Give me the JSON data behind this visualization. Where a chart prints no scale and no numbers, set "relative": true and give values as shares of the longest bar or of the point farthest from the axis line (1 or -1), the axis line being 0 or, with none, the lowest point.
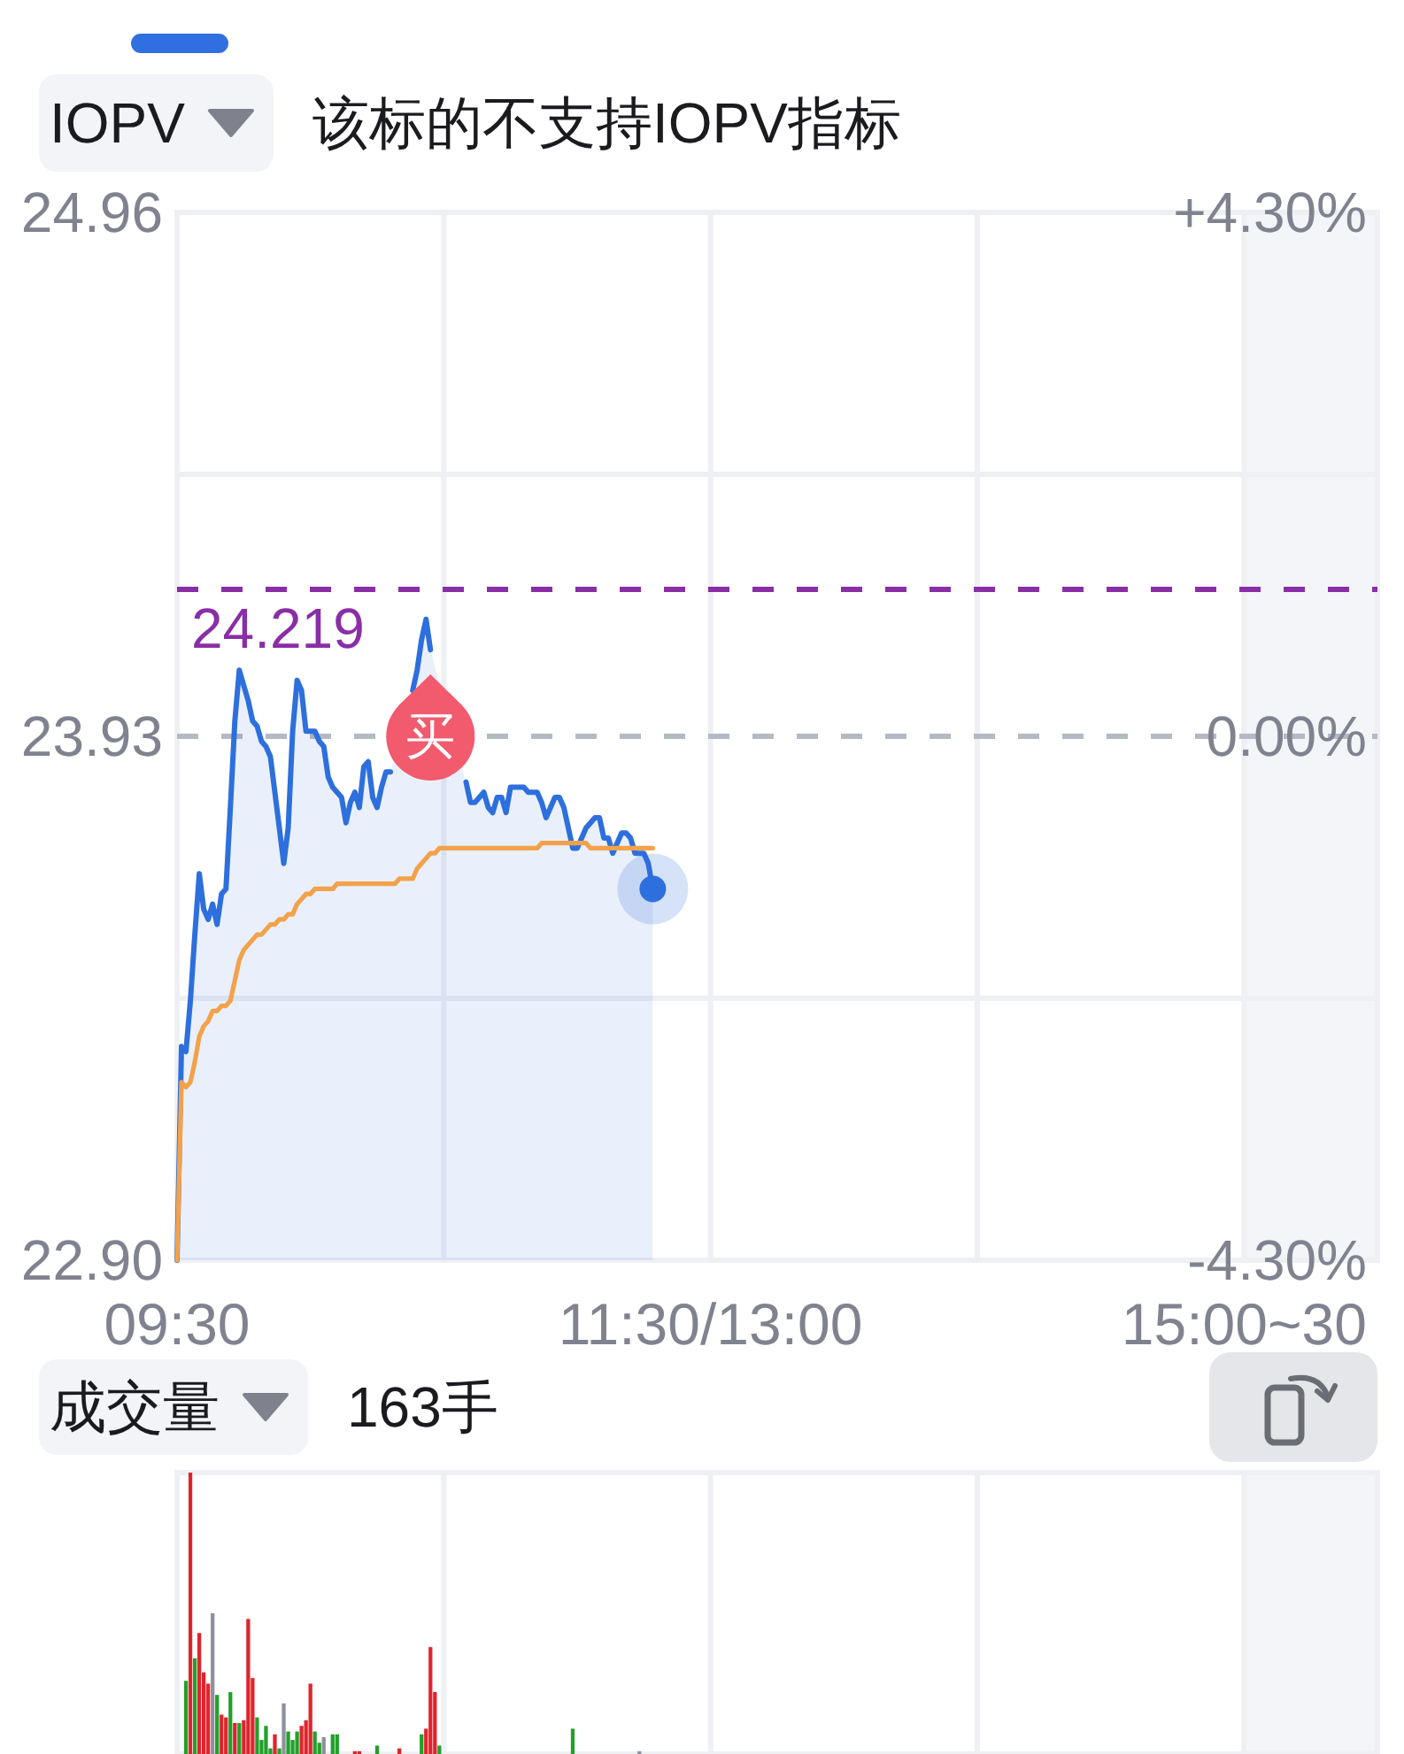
{
  "chart_data": [
    {
      "type": "area",
      "title": "IOPV",
      "subtitle": "该标的不支持IOPV指标",
      "categories": [
        "09:30",
        null,
        null,
        null,
        null,
        null,
        null,
        null,
        null,
        null,
        null,
        null,
        null,
        null,
        null,
        null,
        null,
        null,
        null,
        null,
        null,
        null,
        null,
        null,
        null,
        null,
        null,
        null,
        null,
        null,
        null,
        null,
        null,
        null,
        null,
        null,
        null,
        null,
        null,
        null,
        null,
        null,
        null,
        null,
        null,
        null,
        null,
        null,
        null,
        null,
        null,
        null,
        null,
        null,
        null,
        null,
        null,
        null,
        null,
        null,
        null,
        null,
        null,
        null,
        null,
        null,
        null,
        null,
        null,
        null,
        null,
        null,
        null,
        null,
        null,
        null,
        null,
        null,
        null,
        null,
        null,
        null,
        null,
        null,
        null,
        null,
        null,
        null,
        null,
        null,
        null,
        null,
        null,
        null,
        null,
        null,
        null,
        null,
        null,
        null,
        null,
        null,
        null,
        null,
        null,
        null,
        null,
        null,
        null,
        null,
        null,
        null,
        null,
        null,
        null,
        null,
        null,
        null,
        null,
        null,
        "11:30/13:00",
        null,
        null,
        null,
        null,
        null,
        null,
        null,
        null,
        null,
        null,
        null,
        null,
        null,
        null,
        null,
        null,
        null,
        null,
        null,
        null,
        null,
        null,
        null,
        null,
        null,
        null,
        null,
        null,
        null,
        null,
        null,
        null,
        null,
        null,
        null,
        null,
        null,
        null,
        null,
        null,
        null,
        null,
        null,
        null,
        null,
        null,
        null,
        null,
        null,
        null,
        null,
        null,
        null,
        null,
        null,
        null,
        null,
        null,
        null,
        null,
        null,
        null,
        null,
        null,
        null,
        null,
        null,
        null,
        null,
        null,
        null,
        null,
        null,
        null,
        null,
        null,
        null,
        null,
        null,
        null,
        null,
        null,
        null,
        null,
        null,
        null,
        null,
        null,
        null,
        null,
        null,
        null,
        null,
        null,
        null,
        null,
        null,
        null,
        null,
        null,
        null,
        null,
        null,
        null,
        null,
        null,
        null,
        null,
        null,
        null,
        null,
        null,
        null,
        null,
        null,
        null,
        null,
        null,
        null,
        "15:00~30",
        null,
        null,
        null,
        null,
        null,
        null,
        null,
        null,
        null,
        null,
        null,
        null,
        null,
        null,
        null,
        null,
        null,
        null,
        null,
        null,
        null,
        null,
        null,
        null,
        null,
        null,
        null,
        null,
        null,
        null
      ],
      "series": [
        {
          "color": "#2d6fdc",
          "values": [
            22.9,
            23.32,
            23.31,
            23.41,
            23.54,
            23.66,
            23.59,
            23.57,
            23.6,
            23.56,
            23.62,
            23.63,
            23.79,
            23.96,
            24.06,
            24.03,
            24.0,
            23.96,
            23.95,
            23.92,
            23.91,
            23.89,
            23.82,
            23.75,
            23.68,
            23.75,
            23.94,
            24.04,
            24.02,
            23.94,
            23.94,
            23.94,
            23.92,
            23.91,
            23.85,
            23.83,
            23.82,
            23.81,
            23.76,
            23.8,
            23.82,
            23.79,
            23.87,
            23.88,
            23.81,
            23.79,
            23.83,
            23.86,
            23.86,
            null,
            null,
            null,
            null,
            24.02,
            24.06,
            24.12,
            24.16,
            24.1,
            null,
            null,
            null,
            null,
            null,
            null,
            null,
            23.84,
            23.8,
            23.8,
            23.81,
            23.82,
            23.79,
            23.78,
            23.81,
            23.81,
            23.78,
            23.83,
            23.83,
            23.83,
            23.83,
            23.82,
            23.82,
            23.82,
            23.8,
            23.77,
            23.79,
            23.81,
            23.81,
            23.79,
            23.75,
            23.71,
            23.71,
            23.73,
            23.75,
            23.76,
            23.77,
            23.77,
            23.73,
            23.73,
            23.7,
            23.72,
            23.74,
            23.74,
            23.73,
            23.7,
            23.7,
            23.7,
            23.68,
            23.63,
            null,
            null,
            null,
            null,
            null,
            null,
            null,
            null,
            null,
            null,
            null,
            null,
            null,
            null,
            null,
            null,
            null,
            null,
            null,
            null,
            null,
            null,
            null,
            null,
            null,
            null,
            null,
            null,
            null,
            null,
            null,
            null,
            null,
            null,
            null,
            null,
            null,
            null,
            null,
            null,
            null,
            null,
            null,
            null,
            null,
            null,
            null,
            null,
            null,
            null,
            null,
            null,
            null,
            null,
            null,
            null,
            null,
            null,
            null,
            null,
            null,
            null,
            null,
            null,
            null,
            null,
            null,
            null,
            null,
            null,
            null,
            null,
            null,
            null,
            null,
            null,
            null,
            null,
            null,
            null,
            null,
            null,
            null,
            null,
            null,
            null,
            null,
            null,
            null,
            null,
            null,
            null,
            null,
            null,
            null,
            null,
            null,
            null,
            null,
            null,
            null,
            null,
            null,
            null,
            null,
            null,
            null,
            null,
            null,
            null,
            null,
            null,
            null,
            null,
            null,
            null,
            null,
            null,
            null,
            null,
            null,
            null,
            null,
            null,
            null,
            null,
            null,
            null,
            null,
            null,
            null,
            null,
            null,
            null,
            null,
            null,
            null,
            null,
            null,
            null,
            null,
            null,
            null,
            null,
            null,
            null,
            null,
            null,
            null,
            null,
            null,
            null,
            null,
            null,
            null,
            null,
            null,
            null,
            null,
            null,
            null,
            null,
            null
          ]
        },
        {
          "type": "line",
          "color": "#f3a24b",
          "values": [
            22.9,
            23.25,
            23.24,
            23.25,
            23.29,
            23.34,
            23.36,
            23.37,
            23.39,
            23.39,
            23.4,
            23.4,
            23.41,
            23.45,
            23.49,
            23.51,
            23.52,
            23.53,
            23.54,
            23.54,
            23.55,
            23.56,
            23.56,
            23.57,
            23.57,
            23.58,
            23.58,
            23.6,
            23.61,
            23.62,
            23.62,
            23.63,
            23.63,
            23.63,
            23.63,
            23.63,
            23.64,
            23.64,
            23.64,
            23.64,
            23.64,
            23.64,
            23.64,
            23.64,
            23.64,
            23.64,
            23.64,
            23.64,
            23.64,
            23.64,
            23.65,
            23.65,
            23.65,
            23.65,
            23.67,
            23.68,
            23.69,
            23.7,
            23.7,
            23.71,
            23.71,
            23.71,
            23.71,
            23.71,
            23.71,
            23.71,
            23.71,
            23.71,
            23.71,
            23.71,
            23.71,
            23.71,
            23.71,
            23.71,
            23.71,
            23.71,
            23.71,
            23.71,
            23.71,
            23.71,
            23.71,
            23.71,
            23.72,
            23.72,
            23.72,
            23.72,
            23.72,
            23.72,
            23.72,
            23.72,
            23.72,
            23.72,
            23.72,
            23.71,
            23.71,
            23.71,
            23.71,
            23.71,
            23.71,
            23.71,
            23.71,
            23.71,
            23.71,
            23.71,
            23.71,
            23.71,
            23.71,
            23.71,
            null,
            null,
            null,
            null,
            null,
            null,
            null,
            null,
            null,
            null,
            null,
            null,
            null,
            null,
            null,
            null,
            null,
            null,
            null,
            null,
            null,
            null,
            null,
            null,
            null,
            null,
            null,
            null,
            null,
            null,
            null,
            null,
            null,
            null,
            null,
            null,
            null,
            null,
            null,
            null,
            null,
            null,
            null,
            null,
            null,
            null,
            null,
            null,
            null,
            null,
            null,
            null,
            null,
            null,
            null,
            null,
            null,
            null,
            null,
            null,
            null,
            null,
            null,
            null,
            null,
            null,
            null,
            null,
            null,
            null,
            null,
            null,
            null,
            null,
            null,
            null,
            null,
            null,
            null,
            null,
            null,
            null,
            null,
            null,
            null,
            null,
            null,
            null,
            null,
            null,
            null,
            null,
            null,
            null,
            null,
            null,
            null,
            null,
            null,
            null,
            null,
            null,
            null,
            null,
            null,
            null,
            null,
            null,
            null,
            null,
            null,
            null,
            null,
            null,
            null,
            null,
            null,
            null,
            null,
            null,
            null,
            null,
            null,
            null,
            null,
            null,
            null,
            null,
            null,
            null,
            null,
            null,
            null,
            null,
            null,
            null,
            null,
            null,
            null,
            null,
            null,
            null,
            null,
            null,
            null,
            null,
            null,
            null,
            null,
            null,
            null,
            null,
            null,
            null,
            null,
            null,
            null,
            null,
            null,
            null,
            null,
            null,
            null
          ]
        },
        {
          "type": "scatter",
          "color": "#2d6fdc",
          "marker": "circle",
          "values": [
            null,
            null,
            null,
            null,
            null,
            null,
            null,
            null,
            null,
            null,
            null,
            null,
            null,
            null,
            null,
            null,
            null,
            null,
            null,
            null,
            null,
            null,
            null,
            null,
            null,
            null,
            null,
            null,
            null,
            null,
            null,
            null,
            null,
            null,
            null,
            null,
            null,
            null,
            null,
            null,
            null,
            null,
            null,
            null,
            null,
            null,
            null,
            null,
            null,
            null,
            null,
            null,
            null,
            null,
            null,
            null,
            null,
            null,
            null,
            null,
            null,
            null,
            null,
            null,
            null,
            null,
            null,
            null,
            null,
            null,
            null,
            null,
            null,
            null,
            null,
            null,
            null,
            null,
            null,
            null,
            null,
            null,
            null,
            null,
            null,
            null,
            null,
            null,
            null,
            null,
            null,
            null,
            null,
            null,
            null,
            null,
            null,
            null,
            null,
            null,
            null,
            null,
            null,
            null,
            null,
            null,
            null,
            23.63,
            null,
            null,
            null,
            null,
            null,
            null,
            null,
            null,
            null,
            null,
            null,
            null,
            null,
            null,
            null,
            null,
            null,
            null,
            null,
            null,
            null,
            null,
            null,
            null,
            null,
            null,
            null,
            null,
            null,
            null,
            null,
            null,
            null,
            null,
            null,
            null,
            null,
            null,
            null,
            null,
            null,
            null,
            null,
            null,
            null,
            null,
            null,
            null,
            null,
            null,
            null,
            null,
            null,
            null,
            null,
            null,
            null,
            null,
            null,
            null,
            null,
            null,
            null,
            null,
            null,
            null,
            null,
            null,
            null,
            null,
            null,
            null,
            null,
            null,
            null,
            null,
            null,
            null,
            null,
            null,
            null,
            null,
            null,
            null,
            null,
            null,
            null,
            null,
            null,
            null,
            null,
            null,
            null,
            null,
            null,
            null,
            null,
            null,
            null,
            null,
            null,
            null,
            null,
            null,
            null,
            null,
            null,
            null,
            null,
            null,
            null,
            null,
            null,
            null,
            null,
            null,
            null,
            null,
            null,
            null,
            null,
            null,
            null,
            null,
            null,
            null,
            null,
            null,
            null,
            null,
            null,
            null,
            null,
            null,
            null,
            null,
            null,
            null,
            null,
            null,
            null,
            null,
            null,
            null,
            null,
            null,
            null,
            null,
            null,
            null,
            null,
            null,
            null,
            null,
            null,
            null,
            null,
            null,
            null,
            null,
            null,
            null,
            null
          ]
        },
        {
          "type": "scatter",
          "name": "买",
          "color": "#f25a6e",
          "values": [
            null,
            null,
            null,
            null,
            null,
            null,
            null,
            null,
            null,
            null,
            null,
            null,
            null,
            null,
            null,
            null,
            null,
            null,
            null,
            null,
            null,
            null,
            null,
            null,
            null,
            null,
            null,
            null,
            null,
            null,
            null,
            null,
            null,
            null,
            null,
            null,
            null,
            null,
            null,
            null,
            null,
            null,
            null,
            null,
            null,
            null,
            null,
            null,
            null,
            null,
            null,
            null,
            null,
            null,
            null,
            null,
            null,
            23.93,
            null,
            null,
            null,
            null,
            null,
            null,
            null,
            null,
            null,
            null,
            null,
            null,
            null,
            null,
            null,
            null,
            null,
            null,
            null,
            null,
            null,
            null,
            null,
            null,
            null,
            null,
            null,
            null,
            null,
            null,
            null,
            null,
            null,
            null,
            null,
            null,
            null,
            null,
            null,
            null,
            null,
            null,
            null,
            null,
            null,
            null,
            null,
            null,
            null,
            null,
            null,
            null,
            null,
            null,
            null,
            null,
            null,
            null,
            null,
            null,
            null,
            null,
            null,
            null,
            null,
            null,
            null,
            null,
            null,
            null,
            null,
            null,
            null,
            null,
            null,
            null,
            null,
            null,
            null,
            null,
            null,
            null,
            null,
            null,
            null,
            null,
            null,
            null,
            null,
            null,
            null,
            null,
            null,
            null,
            null,
            null,
            null,
            null,
            null,
            null,
            null,
            null,
            null,
            null,
            null,
            null,
            null,
            null,
            null,
            null,
            null,
            null,
            null,
            null,
            null,
            null,
            null,
            null,
            null,
            null,
            null,
            null,
            null,
            null,
            null,
            null,
            null,
            null,
            null,
            null,
            null,
            null,
            null,
            null,
            null,
            null,
            null,
            null,
            null,
            null,
            null,
            null,
            null,
            null,
            null,
            null,
            null,
            null,
            null,
            null,
            null,
            null,
            null,
            null,
            null,
            null,
            null,
            null,
            null,
            null,
            null,
            null,
            null,
            null,
            null,
            null,
            null,
            null,
            null,
            null,
            null,
            null,
            null,
            null,
            null,
            null,
            null,
            null,
            null,
            null,
            null,
            null,
            null,
            null,
            null,
            null,
            null,
            null,
            null,
            null,
            null,
            null,
            null,
            null,
            null,
            null,
            null,
            null,
            null,
            null,
            null,
            null,
            null,
            null,
            null,
            null,
            null,
            null,
            null,
            null,
            null,
            null,
            null
          ]
        }
      ],
      "ylim": [
        22.9,
        24.96
      ],
      "yticks": [
        24.96,
        {
          "value": 24.445,
          "label": null
        },
        23.93,
        {
          "value": 23.415,
          "label": null
        },
        {
          "value": 22.9,
          "label": "22.90"
        }
      ],
      "y2lim": [
        -4.3,
        4.3
      ],
      "y2ticks": [
        {
          "value": 4.3,
          "label": "+4.30%"
        },
        {
          "value": 0,
          "label": "0.00%"
        },
        {
          "value": -4.3,
          "label": "-4.30%"
        }
      ],
      "ref_lines": [
        {
          "axis": "y",
          "value": 24.219,
          "label": "24.219",
          "color": "#8a2ea6",
          "line_style": "dashed"
        },
        {
          "axis": "y",
          "value": 23.93,
          "color": "#b5b9c5",
          "line_style": "dashed"
        }
      ],
      "grid": true
    },
    {
      "type": "bar",
      "title": "成交量",
      "subtitle": "163手",
      "relative": true,
      "categories": [
        null,
        null,
        null,
        null,
        null,
        null,
        null,
        null,
        null,
        null,
        null,
        null,
        null,
        null,
        null,
        null,
        null,
        null,
        null,
        null,
        null,
        null,
        null,
        null,
        null,
        null,
        null,
        null,
        null,
        null,
        null,
        null,
        null,
        null,
        null,
        null,
        null,
        null,
        null,
        null,
        null,
        null,
        null,
        null,
        null,
        null,
        null,
        null,
        null,
        null,
        null,
        null,
        null,
        null,
        null,
        null,
        null,
        null,
        null,
        null,
        null,
        null,
        null,
        null,
        null,
        null,
        null,
        null,
        null,
        null,
        null,
        null,
        null,
        null,
        null,
        null,
        null,
        null,
        null,
        null,
        null,
        null,
        null,
        null,
        null,
        null,
        null,
        null,
        null,
        null,
        null,
        null,
        null,
        null,
        null,
        null,
        null,
        null,
        null,
        null,
        null,
        null,
        null,
        null,
        null,
        null,
        null,
        null,
        null,
        null,
        null,
        null,
        null,
        null,
        null,
        null,
        null,
        null,
        null,
        null,
        null,
        null,
        null,
        null,
        null,
        null,
        null,
        null,
        null,
        null,
        null,
        null,
        null,
        null,
        null,
        null,
        null,
        null,
        null,
        null,
        null,
        null,
        null,
        null,
        null,
        null,
        null,
        null,
        null,
        null,
        null,
        null,
        null,
        null,
        null,
        null,
        null,
        null,
        null,
        null,
        null,
        null,
        null,
        null,
        null,
        null,
        null,
        null,
        null,
        null,
        null,
        null,
        null,
        null,
        null,
        null,
        null,
        null,
        null,
        null,
        null,
        null,
        null,
        null,
        null,
        null,
        null,
        null,
        null,
        null,
        null,
        null,
        null,
        null,
        null,
        null,
        null,
        null,
        null,
        null,
        null,
        null,
        null,
        null,
        null,
        null,
        null,
        null,
        null,
        null,
        null,
        null,
        null,
        null,
        null,
        null,
        null,
        null,
        null,
        null,
        null,
        null,
        null,
        null,
        null,
        null,
        null,
        null,
        null,
        null,
        null,
        null,
        null,
        null,
        null,
        null,
        null,
        null,
        null,
        null,
        null,
        null,
        null,
        null,
        null,
        null,
        null,
        null,
        null,
        null,
        null,
        null,
        null,
        null,
        null,
        null,
        null,
        null,
        null,
        null,
        null,
        null,
        null,
        null,
        null,
        null,
        null,
        null,
        null,
        null,
        null
      ],
      "values": [
        null,
        null,
        0.26,
        1.0,
        0.34,
        0.43,
        0.29,
        0.25,
        0.5,
        0.21,
        0.14,
        0.13,
        0.22,
        0.11,
        0.11,
        0.12,
        0.48,
        0.27,
        0.13,
        0.05,
        0.1,
        0.02,
        0.07,
        0.02,
        0.18,
        0.08,
        0.05,
        0.08,
        0.1,
        0.12,
        0.25,
        0.08,
        0.04,
        0.06,
        null,
        0.07,
        0.07,
        null,
        null,
        null,
        0.01,
        0.01,
        null,
        null,
        null,
        0.03,
        null,
        null,
        null,
        null,
        0.02,
        null,
        null,
        null,
        null,
        0.07,
        0.09,
        0.38,
        0.22,
        0.03,
        null,
        null,
        null,
        null,
        null,
        null,
        null,
        null,
        null,
        null,
        null,
        null,
        null,
        null,
        null,
        null,
        null,
        null,
        null,
        null,
        null,
        null,
        null,
        null,
        null,
        null,
        null,
        null,
        null,
        0.09,
        null,
        null,
        null,
        null,
        null,
        null,
        null,
        null,
        null,
        null,
        null,
        null,
        null,
        null,
        0.01,
        null,
        null,
        null,
        null,
        null,
        null,
        null,
        null,
        null,
        null,
        null,
        null,
        null,
        null,
        null,
        null,
        null,
        null,
        null,
        null,
        null,
        null,
        null,
        null,
        null,
        null,
        null,
        null,
        null,
        null,
        null,
        null,
        null,
        null,
        null,
        null,
        null,
        null,
        null,
        null,
        null,
        null,
        null,
        null,
        null,
        null,
        null,
        null,
        null,
        null,
        null,
        null,
        null,
        null,
        null,
        null,
        null,
        null,
        null,
        null,
        null,
        null,
        null,
        null,
        null,
        null,
        null,
        null,
        null,
        null,
        null,
        null,
        null,
        null,
        null,
        null,
        null,
        null,
        null,
        null,
        null,
        null,
        null,
        null,
        null,
        null,
        null,
        null,
        null,
        null,
        null,
        null,
        null,
        null,
        null,
        null,
        null,
        null,
        null,
        null,
        null,
        null,
        null,
        null,
        null,
        null,
        null,
        null,
        null,
        null,
        null,
        null,
        null,
        null,
        null,
        null,
        null,
        null,
        null,
        null,
        null,
        null,
        null,
        null,
        null,
        null,
        null,
        null,
        null,
        null,
        null,
        null,
        null,
        null,
        null,
        null,
        null,
        null,
        null,
        null,
        null,
        null,
        null,
        null,
        null,
        null,
        null,
        null,
        null,
        null,
        null,
        null,
        null,
        null,
        null,
        null,
        null,
        null,
        null,
        null,
        null,
        null,
        null,
        null,
        null,
        null
      ],
      "colors": [
        null,
        null,
        "#22a02a",
        "#e0242c",
        "#22a02a",
        "#e0242c",
        "#e0242c",
        "#e0242c",
        "#8e909c",
        "#22a02a",
        "#e0242c",
        "#e0242c",
        "#22a02a",
        "#e0242c",
        "#22a02a",
        "#e0242c",
        "#e0242c",
        "#e0242c",
        "#22a02a",
        "#22a02a",
        "#22a02a",
        "#22a02a",
        "#e0242c",
        "#22a02a",
        "#8e909c",
        "#22a02a",
        "#22a02a",
        "#22a02a",
        "#e0242c",
        "#e0242c",
        "#e0242c",
        "#22a02a",
        "#22a02a",
        "#8e909c",
        null,
        "#22a02a",
        "#22a02a",
        null,
        null,
        null,
        "#e0242c",
        "#e0242c",
        null,
        null,
        null,
        "#22a02a",
        null,
        null,
        null,
        null,
        "#e0242c",
        null,
        null,
        null,
        null,
        "#22a02a",
        "#e0242c",
        "#e0242c",
        "#e0242c",
        "#22a02a",
        null,
        null,
        null,
        null,
        null,
        null,
        null,
        null,
        null,
        null,
        null,
        null,
        null,
        null,
        null,
        null,
        null,
        null,
        null,
        null,
        null,
        null,
        null,
        null,
        null,
        null,
        null,
        null,
        null,
        "#22a02a",
        null,
        null,
        null,
        null,
        null,
        null,
        null,
        null,
        null,
        null,
        null,
        null,
        null,
        null,
        "#8e909c",
        null,
        null,
        null,
        null,
        null,
        null,
        null,
        null,
        null,
        null,
        null,
        null,
        null,
        null,
        null,
        null,
        null,
        null,
        null,
        null,
        null,
        null,
        null,
        null,
        null,
        null,
        null,
        null,
        null,
        null,
        null,
        null,
        null,
        null,
        null,
        null,
        null,
        null,
        null,
        null,
        null,
        null,
        null,
        null,
        null,
        null,
        null,
        null,
        null,
        null,
        null,
        null,
        null,
        null,
        null,
        null,
        null,
        null,
        null,
        null,
        null,
        null,
        null,
        null,
        null,
        null,
        null,
        null,
        null,
        null,
        null,
        null,
        null,
        null,
        null,
        null,
        null,
        null,
        null,
        null,
        null,
        null,
        null,
        null,
        null,
        null,
        null,
        null,
        null,
        null,
        null,
        null,
        null,
        null,
        null,
        null,
        null,
        null,
        null,
        null,
        null,
        null,
        null,
        null,
        null,
        null,
        null,
        null,
        null,
        null,
        null,
        null,
        null,
        null,
        null,
        null,
        null,
        null,
        null,
        null,
        null,
        null,
        null,
        null,
        null,
        null,
        null,
        null,
        null,
        null,
        null,
        null,
        null,
        null,
        null,
        null,
        null,
        null,
        null,
        null,
        null,
        null,
        null,
        null,
        null,
        null,
        null,
        null,
        null,
        null,
        null,
        null,
        null,
        null,
        null,
        null,
        null,
        null,
        null,
        null,
        null,
        null,
        null,
        null,
        null,
        null
      ],
      "grid": "x"
    }
  ]
}
